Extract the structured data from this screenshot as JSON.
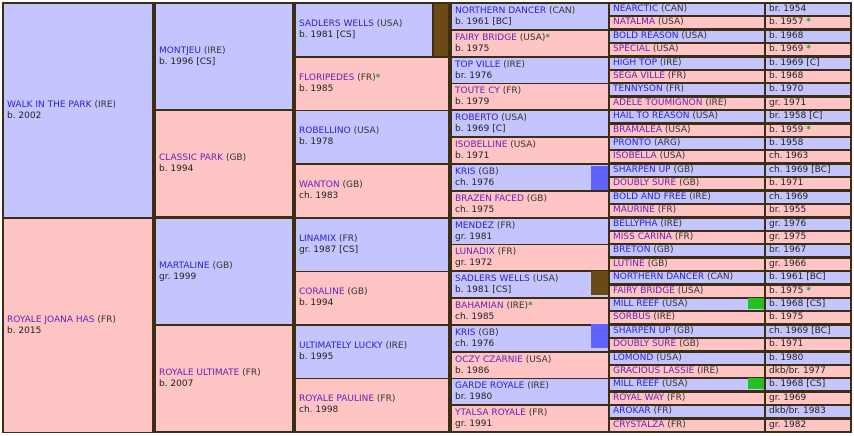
{
  "colors": {
    "male_bg": "#c4c4ff",
    "female_bg": "#ffc4c4",
    "border": "#3b2e12",
    "marker_sadlers_wells": "#6b4a18",
    "marker_kris": "#6262ff",
    "marker_mill_reef": "#22c022",
    "star": "#2a9a2a"
  },
  "gen1": [
    {
      "name": "WALK IN THE PARK",
      "country": "(IRE)",
      "info": "b. 2002",
      "sex": "m"
    },
    {
      "name": "ROYALE JOANA HAS",
      "country": "(FR)",
      "info": "b. 2015",
      "sex": "f"
    }
  ],
  "gen2": [
    {
      "name": "MONTJEU",
      "country": "(IRE)",
      "info": "b. 1996 [CS]",
      "sex": "m"
    },
    {
      "name": "CLASSIC PARK",
      "country": "(GB)",
      "info": "b. 1994",
      "sex": "f"
    },
    {
      "name": "MARTALINE",
      "country": "(GB)",
      "info": "gr. 1999",
      "sex": "m"
    },
    {
      "name": "ROYALE ULTIMATE",
      "country": "(FR)",
      "info": "b. 2007",
      "sex": "f"
    }
  ],
  "gen3": [
    {
      "name": "SADLERS WELLS",
      "country": "(USA)",
      "info": "b. 1981 [CS]",
      "sex": "m",
      "star": ""
    },
    {
      "name": "FLORIPEDES",
      "country": "(FR)",
      "info": "b. 1985",
      "sex": "f",
      "star": "*"
    },
    {
      "name": "ROBELLINO",
      "country": "(USA)",
      "info": "b. 1978",
      "sex": "m",
      "star": ""
    },
    {
      "name": "WANTON",
      "country": "(GB)",
      "info": "ch. 1983",
      "sex": "f",
      "star": ""
    },
    {
      "name": "LINAMIX",
      "country": "(FR)",
      "info": "gr. 1987 [CS]",
      "sex": "m",
      "star": ""
    },
    {
      "name": "CORALINE",
      "country": "(GB)",
      "info": "b. 1994",
      "sex": "f",
      "star": ""
    },
    {
      "name": "ULTIMATELY LUCKY",
      "country": "(IRE)",
      "info": "b. 1995",
      "sex": "m",
      "star": ""
    },
    {
      "name": "ROYALE PAULINE",
      "country": "(FR)",
      "info": "ch. 1998",
      "sex": "f",
      "star": ""
    }
  ],
  "gen4": [
    {
      "name": "NORTHERN DANCER",
      "country": "(CAN)",
      "info": "b. 1961 [BC]",
      "sex": "m",
      "star": ""
    },
    {
      "name": "FAIRY BRIDGE",
      "country": "(USA)",
      "info": "b. 1975",
      "sex": "f",
      "star": "*"
    },
    {
      "name": "TOP VILLE",
      "country": "(IRE)",
      "info": "br. 1976",
      "sex": "m",
      "star": ""
    },
    {
      "name": "TOUTE CY",
      "country": "(FR)",
      "info": "b. 1979",
      "sex": "f",
      "star": ""
    },
    {
      "name": "ROBERTO",
      "country": "(USA)",
      "info": "b. 1969 [C]",
      "sex": "m",
      "star": ""
    },
    {
      "name": "ISOBELLINE",
      "country": "(USA)",
      "info": "b. 1971",
      "sex": "f",
      "star": ""
    },
    {
      "name": "KRIS",
      "country": "(GB)",
      "info": "ch. 1976",
      "sex": "m",
      "star": ""
    },
    {
      "name": "BRAZEN FACED",
      "country": "(GB)",
      "info": "ch. 1975",
      "sex": "f",
      "star": ""
    },
    {
      "name": "MENDEZ",
      "country": "(FR)",
      "info": "gr. 1981",
      "sex": "m",
      "star": ""
    },
    {
      "name": "LUNADIX",
      "country": "(FR)",
      "info": "gr. 1972",
      "sex": "f",
      "star": ""
    },
    {
      "name": "SADLERS WELLS",
      "country": "(USA)",
      "info": "b. 1981 [CS]",
      "sex": "m",
      "star": ""
    },
    {
      "name": "BAHAMIAN",
      "country": "(IRE)",
      "info": "ch. 1985",
      "sex": "f",
      "star": "*"
    },
    {
      "name": "KRIS",
      "country": "(GB)",
      "info": "ch. 1976",
      "sex": "m",
      "star": ""
    },
    {
      "name": "OCZY CZARNIE",
      "country": "(USA)",
      "info": "b. 1986",
      "sex": "f",
      "star": ""
    },
    {
      "name": "GARDE ROYALE",
      "country": "(IRE)",
      "info": "br. 1980",
      "sex": "m",
      "star": ""
    },
    {
      "name": "YTALSA ROYALE",
      "country": "(FR)",
      "info": "gr. 1991",
      "sex": "f",
      "star": ""
    }
  ],
  "gen5": [
    {
      "name": "NEARCTIC",
      "country": "(CAN)",
      "info": "br. 1954",
      "sex": "m",
      "star": ""
    },
    {
      "name": "NATALMA",
      "country": "(USA)",
      "info": "b. 1957",
      "sex": "f",
      "star": "*"
    },
    {
      "name": "BOLD REASON",
      "country": "(USA)",
      "info": "b. 1968",
      "sex": "m",
      "star": ""
    },
    {
      "name": "SPECIAL",
      "country": "(USA)",
      "info": "b. 1969",
      "sex": "f",
      "star": "*"
    },
    {
      "name": "HIGH TOP",
      "country": "(IRE)",
      "info": "b. 1969 [C]",
      "sex": "m",
      "star": ""
    },
    {
      "name": "SEGA VILLE",
      "country": "(FR)",
      "info": "b. 1968",
      "sex": "f",
      "star": ""
    },
    {
      "name": "TENNYSON",
      "country": "(FR)",
      "info": "b. 1970",
      "sex": "m",
      "star": ""
    },
    {
      "name": "ADELE TOUMIGNON",
      "country": "(IRE)",
      "info": "gr. 1971",
      "sex": "f",
      "star": ""
    },
    {
      "name": "HAIL TO REASON",
      "country": "(USA)",
      "info": "br. 1958 [C]",
      "sex": "m",
      "star": ""
    },
    {
      "name": "BRAMALEA",
      "country": "(USA)",
      "info": "b. 1959",
      "sex": "f",
      "star": "*"
    },
    {
      "name": "PRONTO",
      "country": "(ARG)",
      "info": "b. 1958",
      "sex": "m",
      "star": ""
    },
    {
      "name": "ISOBELLA",
      "country": "(USA)",
      "info": "ch. 1963",
      "sex": "f",
      "star": ""
    },
    {
      "name": "SHARPEN UP",
      "country": "(GB)",
      "info": "ch. 1969 [BC]",
      "sex": "m",
      "star": ""
    },
    {
      "name": "DOUBLY SURE",
      "country": "(GB)",
      "info": "b. 1971",
      "sex": "f",
      "star": ""
    },
    {
      "name": "BOLD AND FREE",
      "country": "(IRE)",
      "info": "ch. 1969",
      "sex": "m",
      "star": ""
    },
    {
      "name": "MAURINE",
      "country": "(FR)",
      "info": "br. 1955",
      "sex": "f",
      "star": ""
    },
    {
      "name": "BELLYPHA",
      "country": "(IRE)",
      "info": "gr. 1976",
      "sex": "m",
      "star": ""
    },
    {
      "name": "MISS CARINA",
      "country": "(FR)",
      "info": "gr. 1975",
      "sex": "f",
      "star": ""
    },
    {
      "name": "BRETON",
      "country": "(GB)",
      "info": "br. 1967",
      "sex": "m",
      "star": ""
    },
    {
      "name": "LUTINE",
      "country": "(GB)",
      "info": "gr. 1966",
      "sex": "f",
      "star": ""
    },
    {
      "name": "NORTHERN DANCER",
      "country": "(CAN)",
      "info": "b. 1961 [BC]",
      "sex": "m",
      "star": ""
    },
    {
      "name": "FAIRY BRIDGE",
      "country": "(USA)",
      "info": "b. 1975",
      "sex": "f",
      "star": "*"
    },
    {
      "name": "MILL REEF",
      "country": "(USA)",
      "info": "b. 1968 [CS]",
      "sex": "m",
      "star": ""
    },
    {
      "name": "SORBUS",
      "country": "(IRE)",
      "info": "b. 1975",
      "sex": "f",
      "star": ""
    },
    {
      "name": "SHARPEN UP",
      "country": "(GB)",
      "info": "ch. 1969 [BC]",
      "sex": "m",
      "star": ""
    },
    {
      "name": "DOUBLY SURE",
      "country": "(GB)",
      "info": "b. 1971",
      "sex": "f",
      "star": ""
    },
    {
      "name": "LOMOND",
      "country": "(USA)",
      "info": "b. 1980",
      "sex": "m",
      "star": ""
    },
    {
      "name": "GRACIOUS LASSIE",
      "country": "(IRE)",
      "info": "dkb/br. 1977",
      "sex": "f",
      "star": ""
    },
    {
      "name": "MILL REEF",
      "country": "(USA)",
      "info": "b. 1968 [CS]",
      "sex": "m",
      "star": ""
    },
    {
      "name": "ROYAL WAY",
      "country": "(FR)",
      "info": "gr. 1969",
      "sex": "f",
      "star": ""
    },
    {
      "name": "AROKAR",
      "country": "(FR)",
      "info": "dkb/br. 1983",
      "sex": "m",
      "star": ""
    },
    {
      "name": "CRYSTALZA",
      "country": "(FR)",
      "info": "gr. 1982",
      "sex": "f",
      "star": ""
    }
  ]
}
